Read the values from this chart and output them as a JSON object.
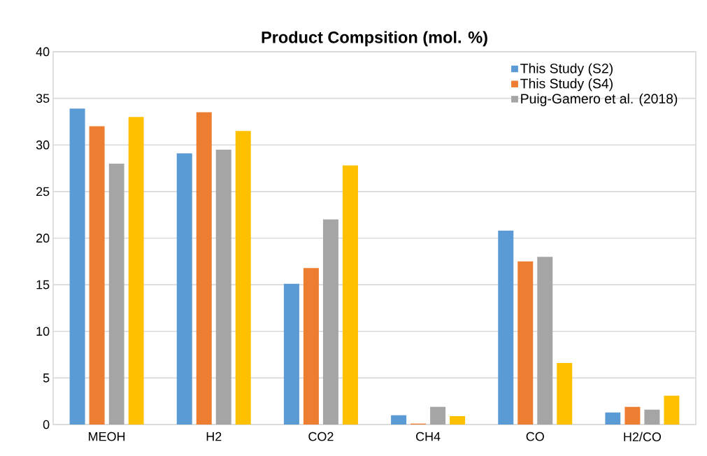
{
  "chart_data": {
    "type": "bar",
    "title": "Product Compsition (mol. %)",
    "categories": [
      "MEOH",
      "H2",
      "CO2",
      "CH4",
      "CO",
      "H2/CO"
    ],
    "series": [
      {
        "name": "This Study (S2)",
        "color": "#5b9bd5",
        "values": [
          33.9,
          29.1,
          15.1,
          1.0,
          20.8,
          1.3
        ]
      },
      {
        "name": "This Study (S4)",
        "color": "#ed7d31",
        "values": [
          32.0,
          33.5,
          16.8,
          0.1,
          17.5,
          1.9
        ]
      },
      {
        "name": "Puig-Gamero et al. (2018)",
        "color": "#a5a5a5",
        "values": [
          28.0,
          29.5,
          22.0,
          1.9,
          18.0,
          1.6
        ]
      },
      {
        "color": "#ffc000",
        "values": [
          33.0,
          31.5,
          27.8,
          0.9,
          6.6,
          3.1
        ]
      }
    ],
    "ylim": [
      0,
      40
    ],
    "yticks": [
      0,
      5,
      10,
      15,
      20,
      25,
      30,
      35,
      40
    ],
    "grid": "y",
    "legend": "top right"
  }
}
